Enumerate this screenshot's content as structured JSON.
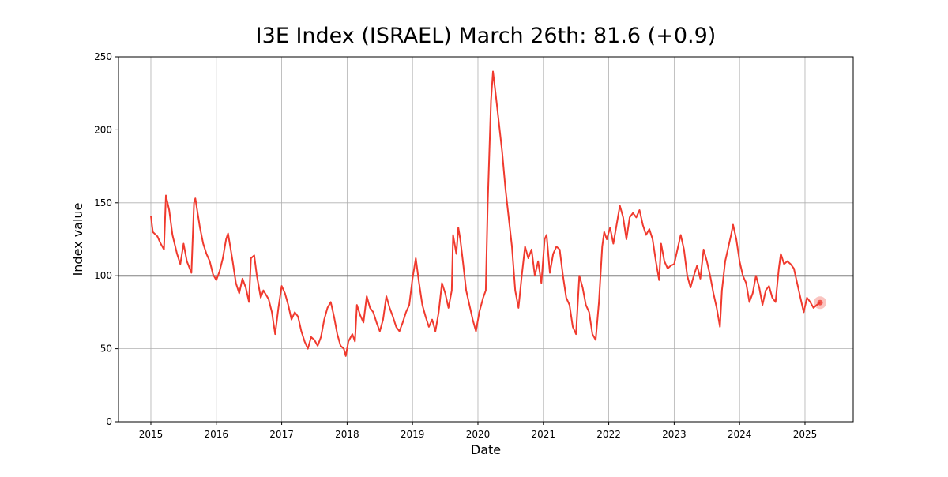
{
  "chart_data": {
    "type": "line",
    "title": "I3E Index (ISRAEL) March 26th: 81.6 (+0.9)",
    "x_label": "Date",
    "y_label": "Index value",
    "color": "#f03a2e",
    "reference_line": 100,
    "reference_color": "#808080",
    "grid": true,
    "xlim": [
      2014.505,
      2025.737
    ],
    "xticks": [
      2015,
      2016,
      2017,
      2018,
      2019,
      2020,
      2021,
      2022,
      2023,
      2024,
      2025
    ],
    "ylim": [
      0,
      250
    ],
    "yticks": [
      0,
      50,
      100,
      150,
      200,
      250
    ],
    "x": [
      2015.0,
      2015.03,
      2015.1,
      2015.15,
      2015.2,
      2015.23,
      2015.28,
      2015.33,
      2015.4,
      2015.45,
      2015.5,
      2015.55,
      2015.62,
      2015.66,
      2015.68,
      2015.75,
      2015.8,
      2015.85,
      2015.9,
      2015.95,
      2016.0,
      2016.05,
      2016.1,
      2016.15,
      2016.18,
      2016.25,
      2016.3,
      2016.35,
      2016.4,
      2016.45,
      2016.5,
      2016.53,
      2016.58,
      2016.62,
      2016.68,
      2016.72,
      2016.8,
      2016.85,
      2016.9,
      2016.95,
      2017.0,
      2017.05,
      2017.1,
      2017.15,
      2017.2,
      2017.25,
      2017.3,
      2017.35,
      2017.4,
      2017.45,
      2017.5,
      2017.55,
      2017.6,
      2017.65,
      2017.7,
      2017.75,
      2017.8,
      2017.85,
      2017.9,
      2017.95,
      2017.98,
      2018.02,
      2018.08,
      2018.12,
      2018.15,
      2018.2,
      2018.25,
      2018.3,
      2018.35,
      2018.4,
      2018.45,
      2018.5,
      2018.55,
      2018.6,
      2018.65,
      2018.7,
      2018.75,
      2018.8,
      2018.85,
      2018.9,
      2018.95,
      2019.0,
      2019.05,
      2019.1,
      2019.15,
      2019.2,
      2019.25,
      2019.3,
      2019.35,
      2019.4,
      2019.45,
      2019.5,
      2019.55,
      2019.6,
      2019.62,
      2019.67,
      2019.7,
      2019.73,
      2019.77,
      2019.82,
      2019.87,
      2019.92,
      2019.97,
      2020.02,
      2020.08,
      2020.12,
      2020.15,
      2020.2,
      2020.23,
      2020.27,
      2020.32,
      2020.37,
      2020.42,
      2020.47,
      2020.52,
      2020.57,
      2020.62,
      2020.67,
      2020.72,
      2020.77,
      2020.82,
      2020.87,
      2020.92,
      2020.97,
      2021.02,
      2021.05,
      2021.1,
      2021.15,
      2021.2,
      2021.25,
      2021.3,
      2021.35,
      2021.4,
      2021.45,
      2021.5,
      2021.55,
      2021.6,
      2021.65,
      2021.7,
      2021.75,
      2021.8,
      2021.85,
      2021.9,
      2021.93,
      2021.97,
      2022.02,
      2022.07,
      2022.12,
      2022.17,
      2022.22,
      2022.27,
      2022.32,
      2022.37,
      2022.42,
      2022.47,
      2022.52,
      2022.57,
      2022.62,
      2022.67,
      2022.72,
      2022.77,
      2022.8,
      2022.85,
      2022.9,
      2022.95,
      2023.0,
      2023.05,
      2023.1,
      2023.15,
      2023.2,
      2023.25,
      2023.3,
      2023.35,
      2023.4,
      2023.45,
      2023.5,
      2023.55,
      2023.6,
      2023.65,
      2023.7,
      2023.73,
      2023.78,
      2023.82,
      2023.87,
      2023.9,
      2023.95,
      2024.0,
      2024.05,
      2024.1,
      2024.15,
      2024.2,
      2024.25,
      2024.3,
      2024.35,
      2024.4,
      2024.45,
      2024.5,
      2024.55,
      2024.6,
      2024.63,
      2024.68,
      2024.73,
      2024.78,
      2024.83,
      2024.88,
      2024.93,
      2024.98,
      2025.03,
      2025.08,
      2025.13,
      2025.18,
      2025.23
    ],
    "values": [
      141,
      130,
      127,
      122,
      118,
      155,
      145,
      128,
      115,
      108,
      122,
      110,
      102,
      150,
      153,
      133,
      122,
      115,
      110,
      101,
      97,
      103,
      112,
      125,
      129,
      110,
      95,
      88,
      98,
      92,
      82,
      112,
      114,
      100,
      85,
      90,
      84,
      75,
      60,
      78,
      93,
      88,
      80,
      70,
      75,
      72,
      62,
      55,
      50,
      58,
      56,
      52,
      58,
      70,
      78,
      82,
      72,
      60,
      52,
      50,
      45,
      55,
      60,
      55,
      80,
      73,
      68,
      86,
      78,
      75,
      68,
      62,
      70,
      86,
      78,
      72,
      65,
      62,
      68,
      75,
      80,
      98,
      112,
      95,
      80,
      72,
      65,
      70,
      62,
      75,
      95,
      88,
      78,
      90,
      128,
      115,
      133,
      125,
      110,
      90,
      80,
      70,
      62,
      75,
      85,
      90,
      150,
      220,
      240,
      225,
      205,
      185,
      160,
      140,
      120,
      90,
      78,
      100,
      120,
      112,
      118,
      100,
      110,
      95,
      125,
      128,
      102,
      115,
      120,
      118,
      100,
      85,
      80,
      65,
      60,
      100,
      92,
      80,
      75,
      60,
      56,
      82,
      120,
      130,
      125,
      133,
      122,
      135,
      148,
      140,
      125,
      140,
      143,
      140,
      145,
      135,
      128,
      132,
      125,
      110,
      97,
      122,
      110,
      105,
      107,
      108,
      118,
      128,
      118,
      100,
      92,
      100,
      107,
      98,
      118,
      110,
      100,
      88,
      78,
      65,
      90,
      110,
      118,
      128,
      135,
      125,
      110,
      100,
      95,
      82,
      88,
      100,
      92,
      80,
      90,
      93,
      85,
      82,
      105,
      115,
      108,
      110,
      108,
      105,
      95,
      85,
      75,
      85,
      82,
      78,
      80,
      81.6
    ]
  }
}
